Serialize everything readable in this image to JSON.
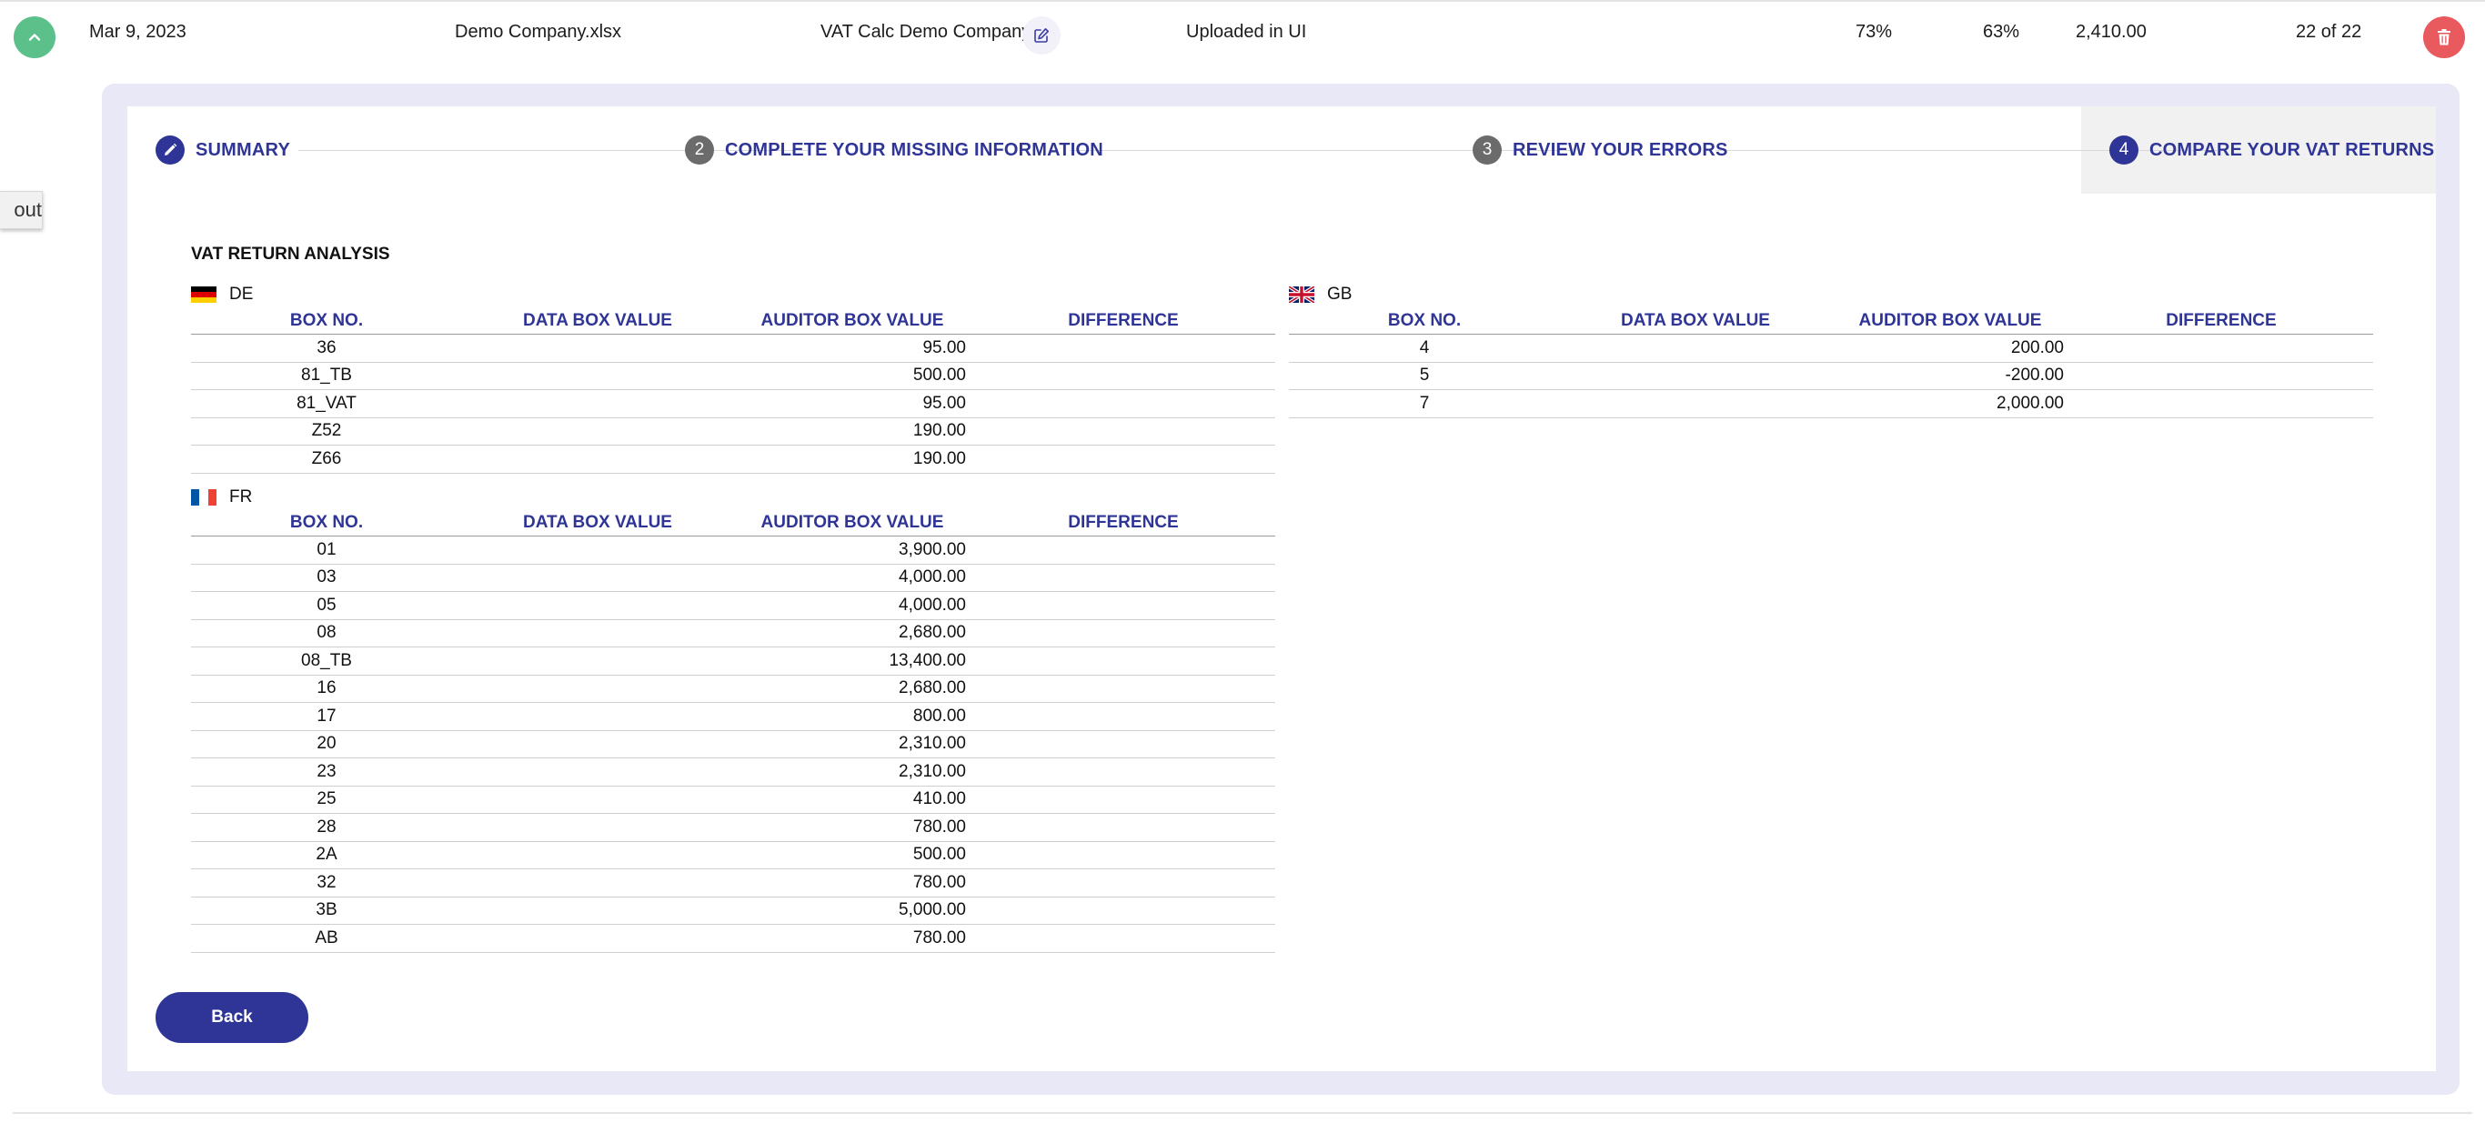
{
  "row": {
    "date": "Mar 9, 2023",
    "file": "Demo Company.xlsx",
    "company": "VAT Calc Demo Company",
    "status": "Uploaded in UI",
    "pct1": "73%",
    "pct2": "63%",
    "amount": "2,410.00",
    "count": "22 of 22"
  },
  "side_tab": {
    "label": "out"
  },
  "steps": [
    {
      "num": "",
      "label": "SUMMARY"
    },
    {
      "num": "2",
      "label": "COMPLETE YOUR MISSING INFORMATION"
    },
    {
      "num": "3",
      "label": "REVIEW YOUR ERRORS"
    },
    {
      "num": "4",
      "label": "COMPARE YOUR VAT RETURNS"
    }
  ],
  "analysis": {
    "title": "VAT RETURN ANALYSIS",
    "headers": [
      "BOX NO.",
      "DATA BOX VALUE",
      "AUDITOR BOX VALUE",
      "DIFFERENCE"
    ],
    "de": {
      "code": "DE",
      "rows": [
        {
          "box": "36",
          "data": "",
          "auditor": "95.00",
          "diff": ""
        },
        {
          "box": "81_TB",
          "data": "",
          "auditor": "500.00",
          "diff": ""
        },
        {
          "box": "81_VAT",
          "data": "",
          "auditor": "95.00",
          "diff": ""
        },
        {
          "box": "Z52",
          "data": "",
          "auditor": "190.00",
          "diff": ""
        },
        {
          "box": "Z66",
          "data": "",
          "auditor": "190.00",
          "diff": ""
        }
      ]
    },
    "gb": {
      "code": "GB",
      "rows": [
        {
          "box": "4",
          "data": "",
          "auditor": "200.00",
          "diff": ""
        },
        {
          "box": "5",
          "data": "",
          "auditor": "-200.00",
          "diff": ""
        },
        {
          "box": "7",
          "data": "",
          "auditor": "2,000.00",
          "diff": ""
        }
      ]
    },
    "fr": {
      "code": "FR",
      "rows": [
        {
          "box": "01",
          "data": "",
          "auditor": "3,900.00",
          "diff": ""
        },
        {
          "box": "03",
          "data": "",
          "auditor": "4,000.00",
          "diff": ""
        },
        {
          "box": "05",
          "data": "",
          "auditor": "4,000.00",
          "diff": ""
        },
        {
          "box": "08",
          "data": "",
          "auditor": "2,680.00",
          "diff": ""
        },
        {
          "box": "08_TB",
          "data": "",
          "auditor": "13,400.00",
          "diff": ""
        },
        {
          "box": "16",
          "data": "",
          "auditor": "2,680.00",
          "diff": ""
        },
        {
          "box": "17",
          "data": "",
          "auditor": "800.00",
          "diff": ""
        },
        {
          "box": "20",
          "data": "",
          "auditor": "2,310.00",
          "diff": ""
        },
        {
          "box": "23",
          "data": "",
          "auditor": "2,310.00",
          "diff": ""
        },
        {
          "box": "25",
          "data": "",
          "auditor": "410.00",
          "diff": ""
        },
        {
          "box": "28",
          "data": "",
          "auditor": "780.00",
          "diff": ""
        },
        {
          "box": "2A",
          "data": "",
          "auditor": "500.00",
          "diff": ""
        },
        {
          "box": "32",
          "data": "",
          "auditor": "780.00",
          "diff": ""
        },
        {
          "box": "3B",
          "data": "",
          "auditor": "5,000.00",
          "diff": ""
        },
        {
          "box": "AB",
          "data": "",
          "auditor": "780.00",
          "diff": ""
        }
      ]
    }
  },
  "back_label": "Back",
  "icons": {
    "collapse": "chevron-up-icon",
    "edit": "pencil-square-icon",
    "delete": "trash-icon",
    "summary_step": "pencil-icon"
  },
  "colors": {
    "accent": "#2f3597",
    "collapse_green": "#5cc08a",
    "delete_red": "#e95a5e",
    "panel_bg": "#e8e8f6",
    "step_inactive": "#6b6b6b"
  }
}
